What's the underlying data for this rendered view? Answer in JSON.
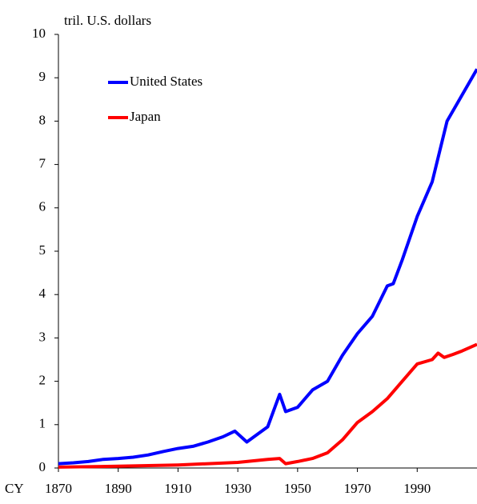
{
  "chart_data": {
    "type": "line",
    "ylabel": "tril. U.S. dollars",
    "xlabel": "CY",
    "xlim": [
      1870,
      2010
    ],
    "xticks": [
      1870,
      1890,
      1910,
      1930,
      1950,
      1970,
      1990
    ],
    "ylim": [
      0,
      10
    ],
    "yticks": [
      0,
      1,
      2,
      3,
      4,
      5,
      6,
      7,
      8,
      9,
      10
    ],
    "series": [
      {
        "name": "United States",
        "color": "#0000ff",
        "x": [
          1870,
          1875,
          1880,
          1885,
          1890,
          1895,
          1900,
          1905,
          1910,
          1915,
          1920,
          1925,
          1929,
          1933,
          1937,
          1940,
          1944,
          1946,
          1950,
          1955,
          1960,
          1965,
          1970,
          1975,
          1980,
          1982,
          1985,
          1990,
          1995,
          2000,
          2005,
          2010
        ],
        "values": [
          0.1,
          0.12,
          0.15,
          0.2,
          0.22,
          0.25,
          0.3,
          0.38,
          0.45,
          0.5,
          0.6,
          0.72,
          0.85,
          0.6,
          0.8,
          0.95,
          1.7,
          1.3,
          1.4,
          1.8,
          2.0,
          2.6,
          3.1,
          3.5,
          4.2,
          4.25,
          4.8,
          5.8,
          6.6,
          8.0,
          8.6,
          9.2
        ]
      },
      {
        "name": "Japan",
        "color": "#ff0000",
        "x": [
          1870,
          1890,
          1910,
          1920,
          1930,
          1940,
          1944,
          1946,
          1950,
          1955,
          1960,
          1965,
          1970,
          1975,
          1980,
          1985,
          1990,
          1995,
          1997,
          1999,
          2002,
          2005,
          2010
        ],
        "values": [
          0.02,
          0.04,
          0.07,
          0.1,
          0.13,
          0.2,
          0.22,
          0.1,
          0.15,
          0.22,
          0.35,
          0.65,
          1.05,
          1.3,
          1.6,
          2.0,
          2.4,
          2.5,
          2.65,
          2.55,
          2.62,
          2.7,
          2.85
        ]
      }
    ]
  }
}
